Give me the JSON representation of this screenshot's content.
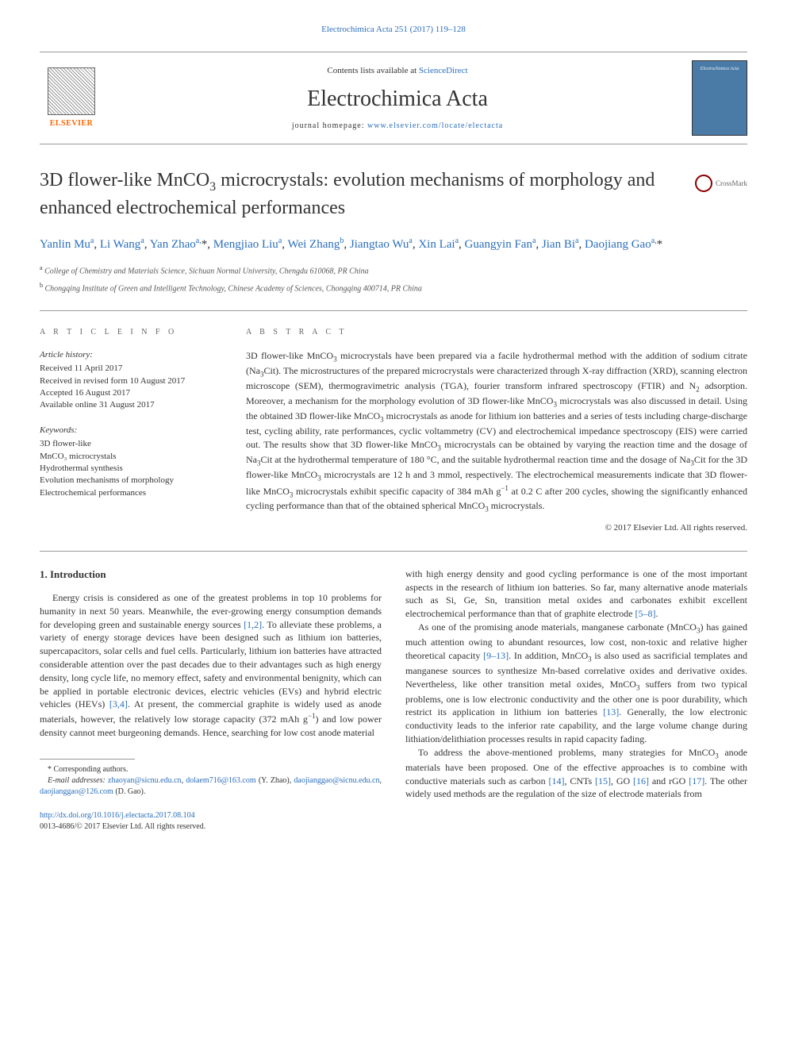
{
  "top_link": {
    "journal": "Electrochimica Acta",
    "citation": "251 (2017) 119–128"
  },
  "header": {
    "contents_prefix": "Contents lists available at ",
    "contents_link": "ScienceDirect",
    "journal_name": "Electrochimica Acta",
    "homepage_label": "journal homepage: ",
    "homepage_url": "www.elsevier.com/locate/electacta",
    "publisher": "ELSEVIER",
    "cover_title": "Electrochimica Acta"
  },
  "title": "3D flower-like MnCO₃ microcrystals: evolution mechanisms of morphology and enhanced electrochemical performances",
  "crossmark": "CrossMark",
  "authors_html": "Yanlin Mu<sup>a</sup>, Li Wang<sup>a</sup>, Yan Zhao<sup>a,*</sup>, Mengjiao Liu<sup>a</sup>, Wei Zhang<sup>b</sup>, Jiangtao Wu<sup>a</sup>, Xin Lai<sup>a</sup>, Guangyin Fan<sup>a</sup>, Jian Bi<sup>a</sup>, Daojiang Gao<sup>a,*</sup>",
  "affiliations": [
    {
      "sup": "a",
      "text": "College of Chemistry and Materials Science, Sichuan Normal University, Chengdu 610068, PR China"
    },
    {
      "sup": "b",
      "text": "Chongqing Institute of Green and Intelligent Technology, Chinese Academy of Sciences, Chongqing 400714, PR China"
    }
  ],
  "info": {
    "info_heading": "A R T I C L E   I N F O",
    "history_heading": "Article history:",
    "history": [
      "Received 11 April 2017",
      "Received in revised form 10 August 2017",
      "Accepted 16 August 2017",
      "Available online 31 August 2017"
    ],
    "keywords_heading": "Keywords:",
    "keywords": [
      "3D flower-like",
      "MnCO₃ microcrystals",
      "Hydrothermal synthesis",
      "Evolution mechanisms of morphology",
      "Electrochemical performances"
    ]
  },
  "abstract": {
    "heading": "A B S T R A C T",
    "text": "3D flower-like MnCO₃ microcrystals have been prepared via a facile hydrothermal method with the addition of sodium citrate (Na₃Cit). The microstructures of the prepared microcrystals were characterized through X-ray diffraction (XRD), scanning electron microscope (SEM), thermogravimetric analysis (TGA), fourier transform infrared spectroscopy (FTIR) and N₂ adsorption. Moreover, a mechanism for the morphology evolution of 3D flower-like MnCO₃ microcrystals was also discussed in detail. Using the obtained 3D flower-like MnCO₃ microcrystals as anode for lithium ion batteries and a series of tests including charge-discharge test, cycling ability, rate performances, cyclic voltammetry (CV) and electrochemical impedance spectroscopy (EIS) were carried out. The results show that 3D flower-like MnCO₃ microcrystals can be obtained by varying the reaction time and the dosage of Na₃Cit at the hydrothermal temperature of 180 °C, and the suitable hydrothermal reaction time and the dosage of Na₃Cit for the 3D flower-like MnCO₃ microcrystals are 12 h and 3 mmol, respectively. The electrochemical measurements indicate that 3D flower-like MnCO₃ microcrystals exhibit specific capacity of 384 mAh g⁻¹ at 0.2 C after 200 cycles, showing the significantly enhanced cycling performance than that of the obtained spherical MnCO₃ microcrystals.",
    "copyright": "© 2017 Elsevier Ltd. All rights reserved."
  },
  "body": {
    "section_heading": "1. Introduction",
    "col1_p1": "Energy crisis is considered as one of the greatest problems in top 10 problems for humanity in next 50 years. Meanwhile, the ever-growing energy consumption demands for developing green and sustainable energy sources [1,2]. To alleviate these problems, a variety of energy storage devices have been designed such as lithium ion batteries, supercapacitors, solar cells and fuel cells. Particularly, lithium ion batteries have attracted considerable attention over the past decades due to their advantages such as high energy density, long cycle life, no memory effect, safety and environmental benignity, which can be applied in portable electronic devices, electric vehicles (EVs) and hybrid electric vehicles (HEVs) [3,4]. At present, the commercial graphite is widely used as anode materials, however, the relatively low storage capacity (372 mAh g⁻¹) and low power density cannot meet burgeoning demands. Hence, searching for low cost anode material",
    "col2_p1": "with high energy density and good cycling performance is one of the most important aspects in the research of lithium ion batteries. So far, many alternative anode materials such as Si, Ge, Sn, transition metal oxides and carbonates exhibit excellent electrochemical performance than that of graphite electrode [5–8].",
    "col2_p2": "As one of the promising anode materials, manganese carbonate (MnCO₃) has gained much attention owing to abundant resources, low cost, non-toxic and relative higher theoretical capacity [9–13]. In addition, MnCO₃ is also used as sacrificial templates and manganese sources to synthesize Mn-based correlative oxides and derivative oxides. Nevertheless, like other transition metal oxides, MnCO₃ suffers from two typical problems, one is low electronic conductivity and the other one is poor durability, which restrict its application in lithium ion batteries [13]. Generally, the low electronic conductivity leads to the inferior rate capability, and the large volume change during lithiation/delithiation processes results in rapid capacity fading.",
    "col2_p3": "To address the above-mentioned problems, many strategies for MnCO₃ anode materials have been proposed. One of the effective approaches is to combine with conductive materials such as carbon [14], CNTs [15], GO [16] and rGO [17]. The other widely used methods are the regulation of the size of electrode materials from"
  },
  "refs": {
    "r1_2": "[1,2]",
    "r3_4": "[3,4]",
    "r5_8": "[5–8]",
    "r9_13": "[9–13]",
    "r13": "[13]",
    "r14": "[14]",
    "r15": "[15]",
    "r16": "[16]",
    "r17": "[17]"
  },
  "footnotes": {
    "corresponding": "* Corresponding authors.",
    "email_label": "E-mail addresses: ",
    "email1": "zhaoyan@sicnu.edu.cn",
    "email2": "dolaem716@163.com",
    "email_paren1": " (Y. Zhao), ",
    "email3": "daojianggao@sicnu.edu.cn",
    "email4": "daojianggao@126.com",
    "email_paren2": " (D. Gao)."
  },
  "doi": {
    "url": "http://dx.doi.org/10.1016/j.electacta.2017.08.104",
    "issn": "0013-4686/© 2017 Elsevier Ltd. All rights reserved."
  },
  "colors": {
    "link": "#2a6ebb",
    "text": "#333333",
    "elsevier_orange": "#ff6600",
    "cover_bg": "#4a7ba6",
    "crossmark_ring": "#8b0000"
  }
}
